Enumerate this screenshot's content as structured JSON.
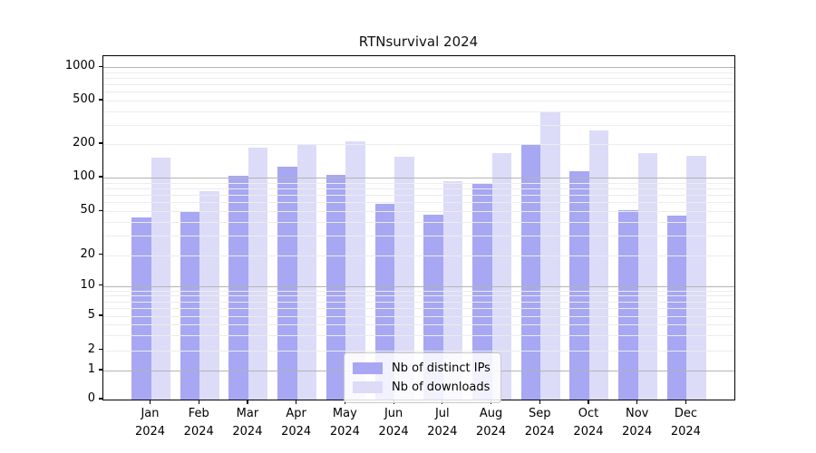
{
  "chart_data": {
    "type": "bar",
    "title": "RTNsurvival 2024",
    "categories": [
      "Jan 2024",
      "Feb 2024",
      "Mar 2024",
      "Apr 2024",
      "May 2024",
      "Jun 2024",
      "Jul 2024",
      "Aug 2024",
      "Sep 2024",
      "Oct 2024",
      "Nov 2024",
      "Dec 2024"
    ],
    "series": [
      {
        "name": "Nb of distinct IPs",
        "color": "#a7a7f3",
        "values": [
          44,
          50,
          103,
          125,
          106,
          58,
          47,
          88,
          198,
          113,
          51,
          46
        ]
      },
      {
        "name": "Nb of downloads",
        "color": "#dcdcf8",
        "values": [
          150,
          75,
          185,
          195,
          210,
          154,
          93,
          165,
          390,
          265,
          165,
          157
        ]
      }
    ],
    "xlabel": "",
    "ylabel": "",
    "yscale": "symlog",
    "y_ticks": [
      0,
      1,
      2,
      5,
      10,
      20,
      50,
      100,
      200,
      500,
      1000
    ],
    "ylim": [
      0,
      1300
    ],
    "grid": true,
    "legend": {
      "position": "lower center",
      "entries": [
        "Nb of distinct IPs",
        "Nb of downloads"
      ]
    },
    "colors": {
      "major_grid": "#b3b3b3",
      "minor_grid": "#ececec",
      "spine": "#000000",
      "title_text": "#111111"
    }
  }
}
